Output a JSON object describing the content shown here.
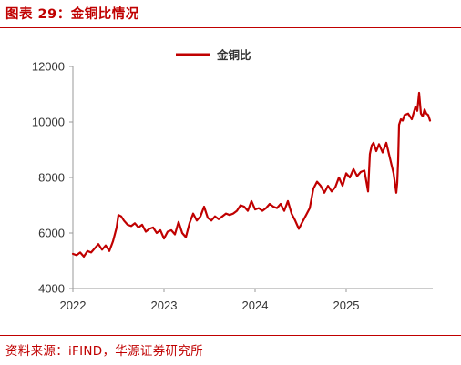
{
  "figure": {
    "title": "图表 29：金铜比情况",
    "source": "资料来源：iFIND，华源证券研究所"
  },
  "colors": {
    "accent": "#c00000",
    "series": "#c00000",
    "axis": "#999999",
    "text": "#333333"
  },
  "chart_data": {
    "type": "line",
    "title": "",
    "xlabel": "",
    "ylabel": "",
    "ylim": [
      4000,
      12000
    ],
    "yticks": [
      4000,
      6000,
      8000,
      10000,
      12000
    ],
    "xlim": [
      2022.0,
      2025.95
    ],
    "xticks": [
      {
        "label": "2022",
        "value": 2022.0
      },
      {
        "label": "2023",
        "value": 2023.0
      },
      {
        "label": "2024",
        "value": 2024.0
      },
      {
        "label": "2025",
        "value": 2025.0
      }
    ],
    "grid": false,
    "legend": "top-center",
    "series": [
      {
        "name": "金铜比",
        "color": "#c00000",
        "x": [
          2022.0,
          2022.04,
          2022.08,
          2022.12,
          2022.16,
          2022.2,
          2022.24,
          2022.28,
          2022.32,
          2022.36,
          2022.4,
          2022.44,
          2022.48,
          2022.5,
          2022.53,
          2022.56,
          2022.6,
          2022.64,
          2022.68,
          2022.72,
          2022.76,
          2022.8,
          2022.84,
          2022.88,
          2022.92,
          2022.96,
          2023.0,
          2023.04,
          2023.08,
          2023.12,
          2023.16,
          2023.2,
          2023.24,
          2023.28,
          2023.32,
          2023.36,
          2023.4,
          2023.44,
          2023.48,
          2023.52,
          2023.56,
          2023.6,
          2023.64,
          2023.68,
          2023.72,
          2023.76,
          2023.8,
          2023.84,
          2023.88,
          2023.92,
          2023.96,
          2024.0,
          2024.04,
          2024.08,
          2024.12,
          2024.16,
          2024.2,
          2024.24,
          2024.28,
          2024.32,
          2024.36,
          2024.4,
          2024.44,
          2024.48,
          2024.52,
          2024.56,
          2024.6,
          2024.64,
          2024.68,
          2024.72,
          2024.76,
          2024.8,
          2024.84,
          2024.88,
          2024.92,
          2024.96,
          2025.0,
          2025.04,
          2025.08,
          2025.12,
          2025.16,
          2025.2,
          2025.24,
          2025.26,
          2025.28,
          2025.3,
          2025.33,
          2025.36,
          2025.4,
          2025.44,
          2025.48,
          2025.52,
          2025.55,
          2025.56,
          2025.57,
          2025.58,
          2025.6,
          2025.62,
          2025.64,
          2025.68,
          2025.72,
          2025.76,
          2025.78,
          2025.8,
          2025.82,
          2025.84,
          2025.86,
          2025.88,
          2025.9,
          2025.92
        ],
        "y": [
          5250,
          5200,
          5300,
          5150,
          5350,
          5300,
          5450,
          5600,
          5400,
          5550,
          5350,
          5700,
          6200,
          6650,
          6600,
          6450,
          6300,
          6250,
          6350,
          6200,
          6300,
          6050,
          6150,
          6200,
          6000,
          6100,
          5800,
          6050,
          6100,
          5950,
          6400,
          6000,
          5850,
          6350,
          6700,
          6450,
          6600,
          6950,
          6550,
          6450,
          6600,
          6500,
          6600,
          6700,
          6650,
          6700,
          6800,
          7000,
          6950,
          6800,
          7150,
          6850,
          6900,
          6800,
          6900,
          7050,
          6950,
          6900,
          7050,
          6800,
          7150,
          6700,
          6450,
          6150,
          6400,
          6650,
          6900,
          7600,
          7850,
          7700,
          7450,
          7700,
          7500,
          7650,
          8000,
          7700,
          8150,
          8000,
          8300,
          8050,
          8200,
          8250,
          7500,
          8850,
          9150,
          9250,
          8950,
          9200,
          8900,
          9250,
          8700,
          8150,
          7450,
          7800,
          8600,
          9900,
          10100,
          10050,
          10250,
          10300,
          10100,
          10550,
          10400,
          11050,
          10300,
          10200,
          10450,
          10300,
          10250,
          10050
        ]
      }
    ]
  }
}
